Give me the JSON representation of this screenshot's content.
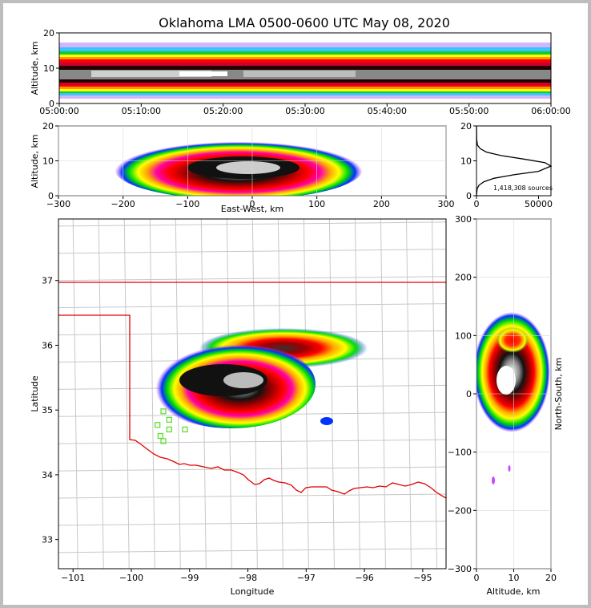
{
  "title": "Oklahoma LMA 0500-0600 UTC May 08, 2020",
  "colors": {
    "state_border": "#e00000",
    "county_lines": "#c8c8c8",
    "station_markers": "#55dd22",
    "density_scale": [
      "#0000ff",
      "#00d8ff",
      "#00e000",
      "#ffff00",
      "#ff9900",
      "#ff0000",
      "#d00030",
      "#990000",
      "#000000",
      "#808080",
      "#ffffff"
    ]
  },
  "chart_data": [
    {
      "id": "time_height",
      "type": "heatmap",
      "xlabel": "",
      "ylabel": "Altitude, km",
      "xticks": [
        "05:00:00",
        "05:10:00",
        "05:20:00",
        "05:30:00",
        "05:40:00",
        "05:50:00",
        "06:00:00"
      ],
      "xlim": [
        "05:00:00",
        "06:00:00"
      ],
      "ylim": [
        0,
        20
      ],
      "yticks": [
        "0",
        "10",
        "20"
      ],
      "grid": true,
      "density_core_altitude_km": [
        6,
        12
      ],
      "density_outer_altitude_km": [
        1,
        16
      ]
    },
    {
      "id": "east_west_altitude",
      "type": "heatmap",
      "xlabel": "East-West, km",
      "ylabel": "Altitude, km",
      "xlim": [
        -300,
        300
      ],
      "ylim": [
        0,
        20
      ],
      "xticks": [
        "−300",
        "−200",
        "−100",
        "0",
        "100",
        "200",
        "300"
      ],
      "yticks": [
        "0",
        "10",
        "20"
      ],
      "grid": true,
      "density_extent_km": [
        -160,
        180
      ],
      "density_core_km": [
        -50,
        70
      ]
    },
    {
      "id": "altitude_histogram",
      "type": "line",
      "xlim": [
        0,
        60000
      ],
      "ylim": [
        0,
        20
      ],
      "xticks": [
        "0",
        "50000"
      ],
      "yticks": [
        "0",
        "10",
        "20"
      ],
      "annotation": "1,418,308 sources",
      "x": [
        0,
        500,
        2000,
        6000,
        14000,
        30000,
        50000,
        60000,
        55000,
        38000,
        20000,
        8000,
        3000,
        800,
        200,
        0
      ],
      "y": [
        0,
        2,
        3,
        4,
        5,
        6,
        7,
        8.5,
        9.5,
        10.5,
        11.5,
        12.5,
        13.5,
        14.5,
        16,
        20
      ]
    },
    {
      "id": "plan_view",
      "type": "heatmap",
      "xlabel": "Longitude",
      "ylabel": "Latitude",
      "xlim": [
        -101.25,
        -94.6
      ],
      "ylim": [
        32.55,
        37.95
      ],
      "xticks": [
        "−101",
        "−100",
        "−99",
        "−98",
        "−97",
        "−96",
        "−95"
      ],
      "yticks": [
        "33",
        "34",
        "35",
        "36",
        "37"
      ],
      "grid": true,
      "stations": [
        {
          "lon": -99.45,
          "lat": 34.98
        },
        {
          "lon": -99.35,
          "lat": 34.85
        },
        {
          "lon": -99.55,
          "lat": 34.77
        },
        {
          "lon": -99.35,
          "lat": 34.7
        },
        {
          "lon": -99.08,
          "lat": 34.7
        },
        {
          "lon": -99.5,
          "lat": 34.6
        },
        {
          "lon": -99.45,
          "lat": 34.52
        }
      ]
    },
    {
      "id": "altitude_north_south",
      "type": "heatmap",
      "xlabel": "Altitude, km",
      "ylabel": "North-South, km",
      "xlim": [
        0,
        20
      ],
      "ylim": [
        -300,
        300
      ],
      "xticks": [
        "0",
        "10",
        "20"
      ],
      "yticks": [
        "−300",
        "−200",
        "−100",
        "0",
        "100",
        "200",
        "300"
      ],
      "grid": true
    }
  ]
}
